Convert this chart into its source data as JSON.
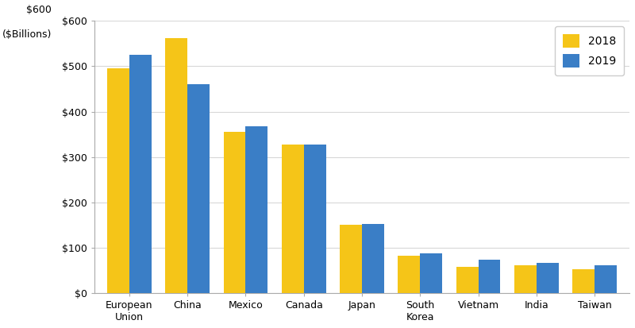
{
  "categories": [
    "European\nUnion",
    "China",
    "Mexico",
    "Canada",
    "Japan",
    "South\nKorea",
    "Vietnam",
    "India",
    "Taiwan"
  ],
  "values_2018": [
    495,
    562,
    355,
    328,
    151,
    82,
    57,
    62,
    52
  ],
  "values_2019": [
    525,
    460,
    368,
    328,
    152,
    87,
    74,
    66,
    62
  ],
  "color_2018": "#F5C518",
  "color_2019": "#3A7EC6",
  "ylim": [
    0,
    600
  ],
  "yticks": [
    0,
    100,
    200,
    300,
    400,
    500,
    600
  ],
  "legend_labels": [
    "2018",
    "2019"
  ],
  "background_color": "#ffffff",
  "plot_bg_color": "#ffffff",
  "grid_color": "#d8d8d8",
  "bar_width": 0.38,
  "top_label": "$600",
  "side_label": "($Billions)"
}
